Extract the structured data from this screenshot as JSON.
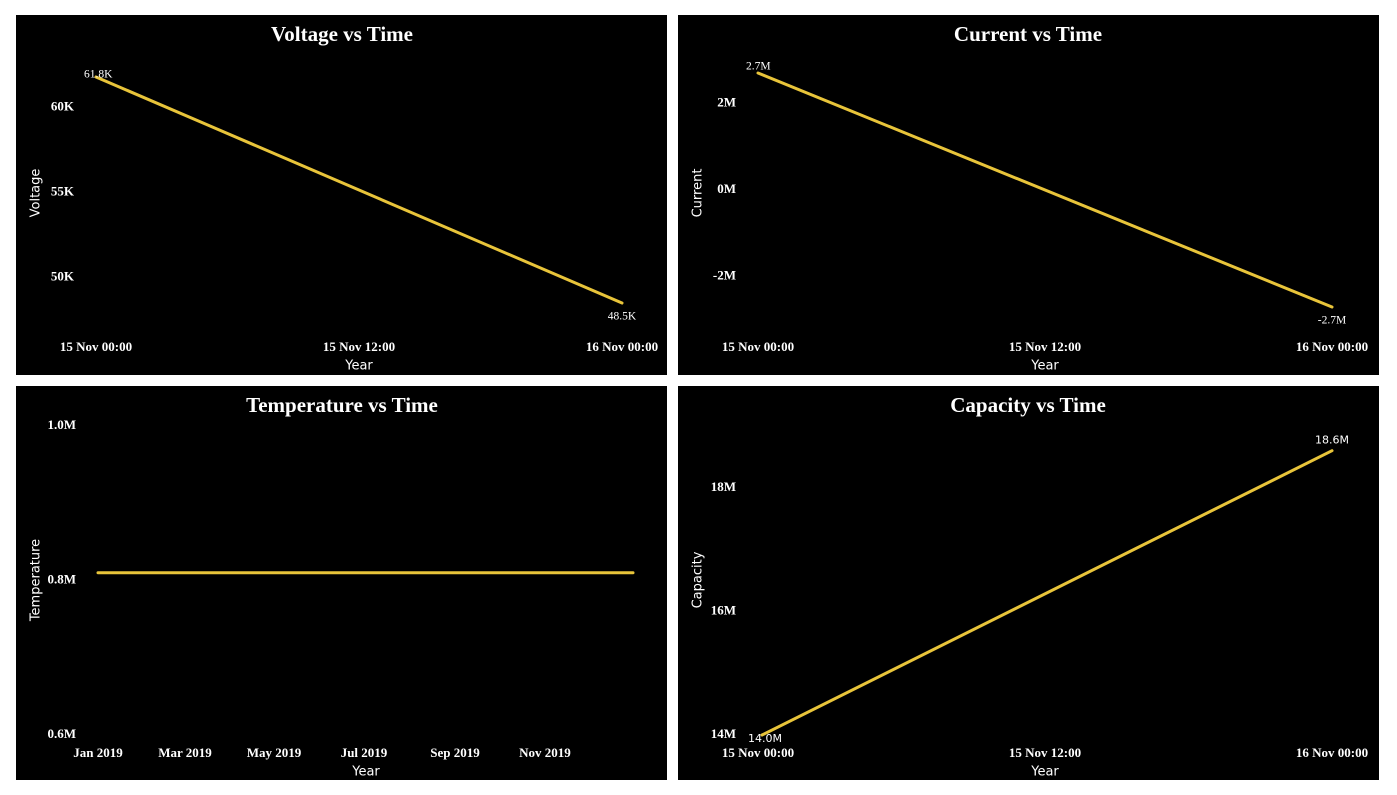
{
  "colors": {
    "line": "#E8C43A",
    "background": "#000000",
    "text": "#ffffff"
  },
  "chart_data": [
    {
      "type": "line",
      "title": "Voltage vs Time",
      "xlabel": "Year",
      "ylabel": "Voltage",
      "x_ticks": [
        "15 Nov 00:00",
        "15 Nov 12:00",
        "16 Nov 00:00"
      ],
      "y_ticks": [
        {
          "value": 50000,
          "label": "50K"
        },
        {
          "value": 55000,
          "label": "55K"
        },
        {
          "value": 60000,
          "label": "60K"
        }
      ],
      "ylim": [
        47500,
        62800
      ],
      "series": [
        {
          "x": [
            0,
            24
          ],
          "values": [
            61800,
            48500
          ],
          "labels": [
            "61.8K",
            "48.5K"
          ]
        }
      ],
      "grid": false,
      "legend": "none"
    },
    {
      "type": "line",
      "title": "Current vs Time",
      "xlabel": "Year",
      "ylabel": "Current",
      "x_ticks": [
        "15 Nov 00:00",
        "15 Nov 12:00",
        "16 Nov 00:00"
      ],
      "y_ticks": [
        {
          "value": -2000000,
          "label": "-2M"
        },
        {
          "value": 0,
          "label": "0M"
        },
        {
          "value": 2000000,
          "label": "2M"
        }
      ],
      "ylim": [
        -3000000,
        3000000
      ],
      "series": [
        {
          "x": [
            0,
            24
          ],
          "values": [
            2700000,
            -2700000
          ],
          "labels": [
            "2.7M",
            "-2.7M"
          ]
        }
      ],
      "grid": false,
      "legend": "none"
    },
    {
      "type": "line",
      "title": "Temperature vs Time",
      "xlabel": "Year",
      "ylabel": "Temperature",
      "x_ticks": [
        "Jan 2019",
        "Mar 2019",
        "May 2019",
        "Jul 2019",
        "Sep 2019",
        "Nov 2019"
      ],
      "y_ticks": [
        {
          "value": 0.6,
          "label": "0.6M"
        },
        {
          "value": 0.8,
          "label": "0.8M"
        },
        {
          "value": 1.0,
          "label": "1.0M"
        }
      ],
      "ylim": [
        0.6,
        1.0
      ],
      "series": [
        {
          "x": [
            "2019-01-01",
            "2019-12-31"
          ],
          "values": [
            0.81,
            0.81
          ],
          "labels": []
        }
      ],
      "grid": false,
      "legend": "none"
    },
    {
      "type": "line",
      "title": "Capacity vs Time",
      "xlabel": "Year",
      "ylabel": "Capacity",
      "x_ticks": [
        "15 Nov 00:00",
        "15 Nov 12:00",
        "16 Nov 00:00"
      ],
      "y_ticks": [
        {
          "value": 14000000,
          "label": "14M"
        },
        {
          "value": 16000000,
          "label": "16M"
        },
        {
          "value": 18000000,
          "label": "18M"
        }
      ],
      "ylim": [
        14000000,
        19000000
      ],
      "series": [
        {
          "x": [
            0,
            24
          ],
          "values": [
            14000000,
            18600000
          ],
          "labels": [
            "14.0M",
            "18.6M"
          ]
        }
      ],
      "grid": false,
      "legend": "none"
    }
  ]
}
